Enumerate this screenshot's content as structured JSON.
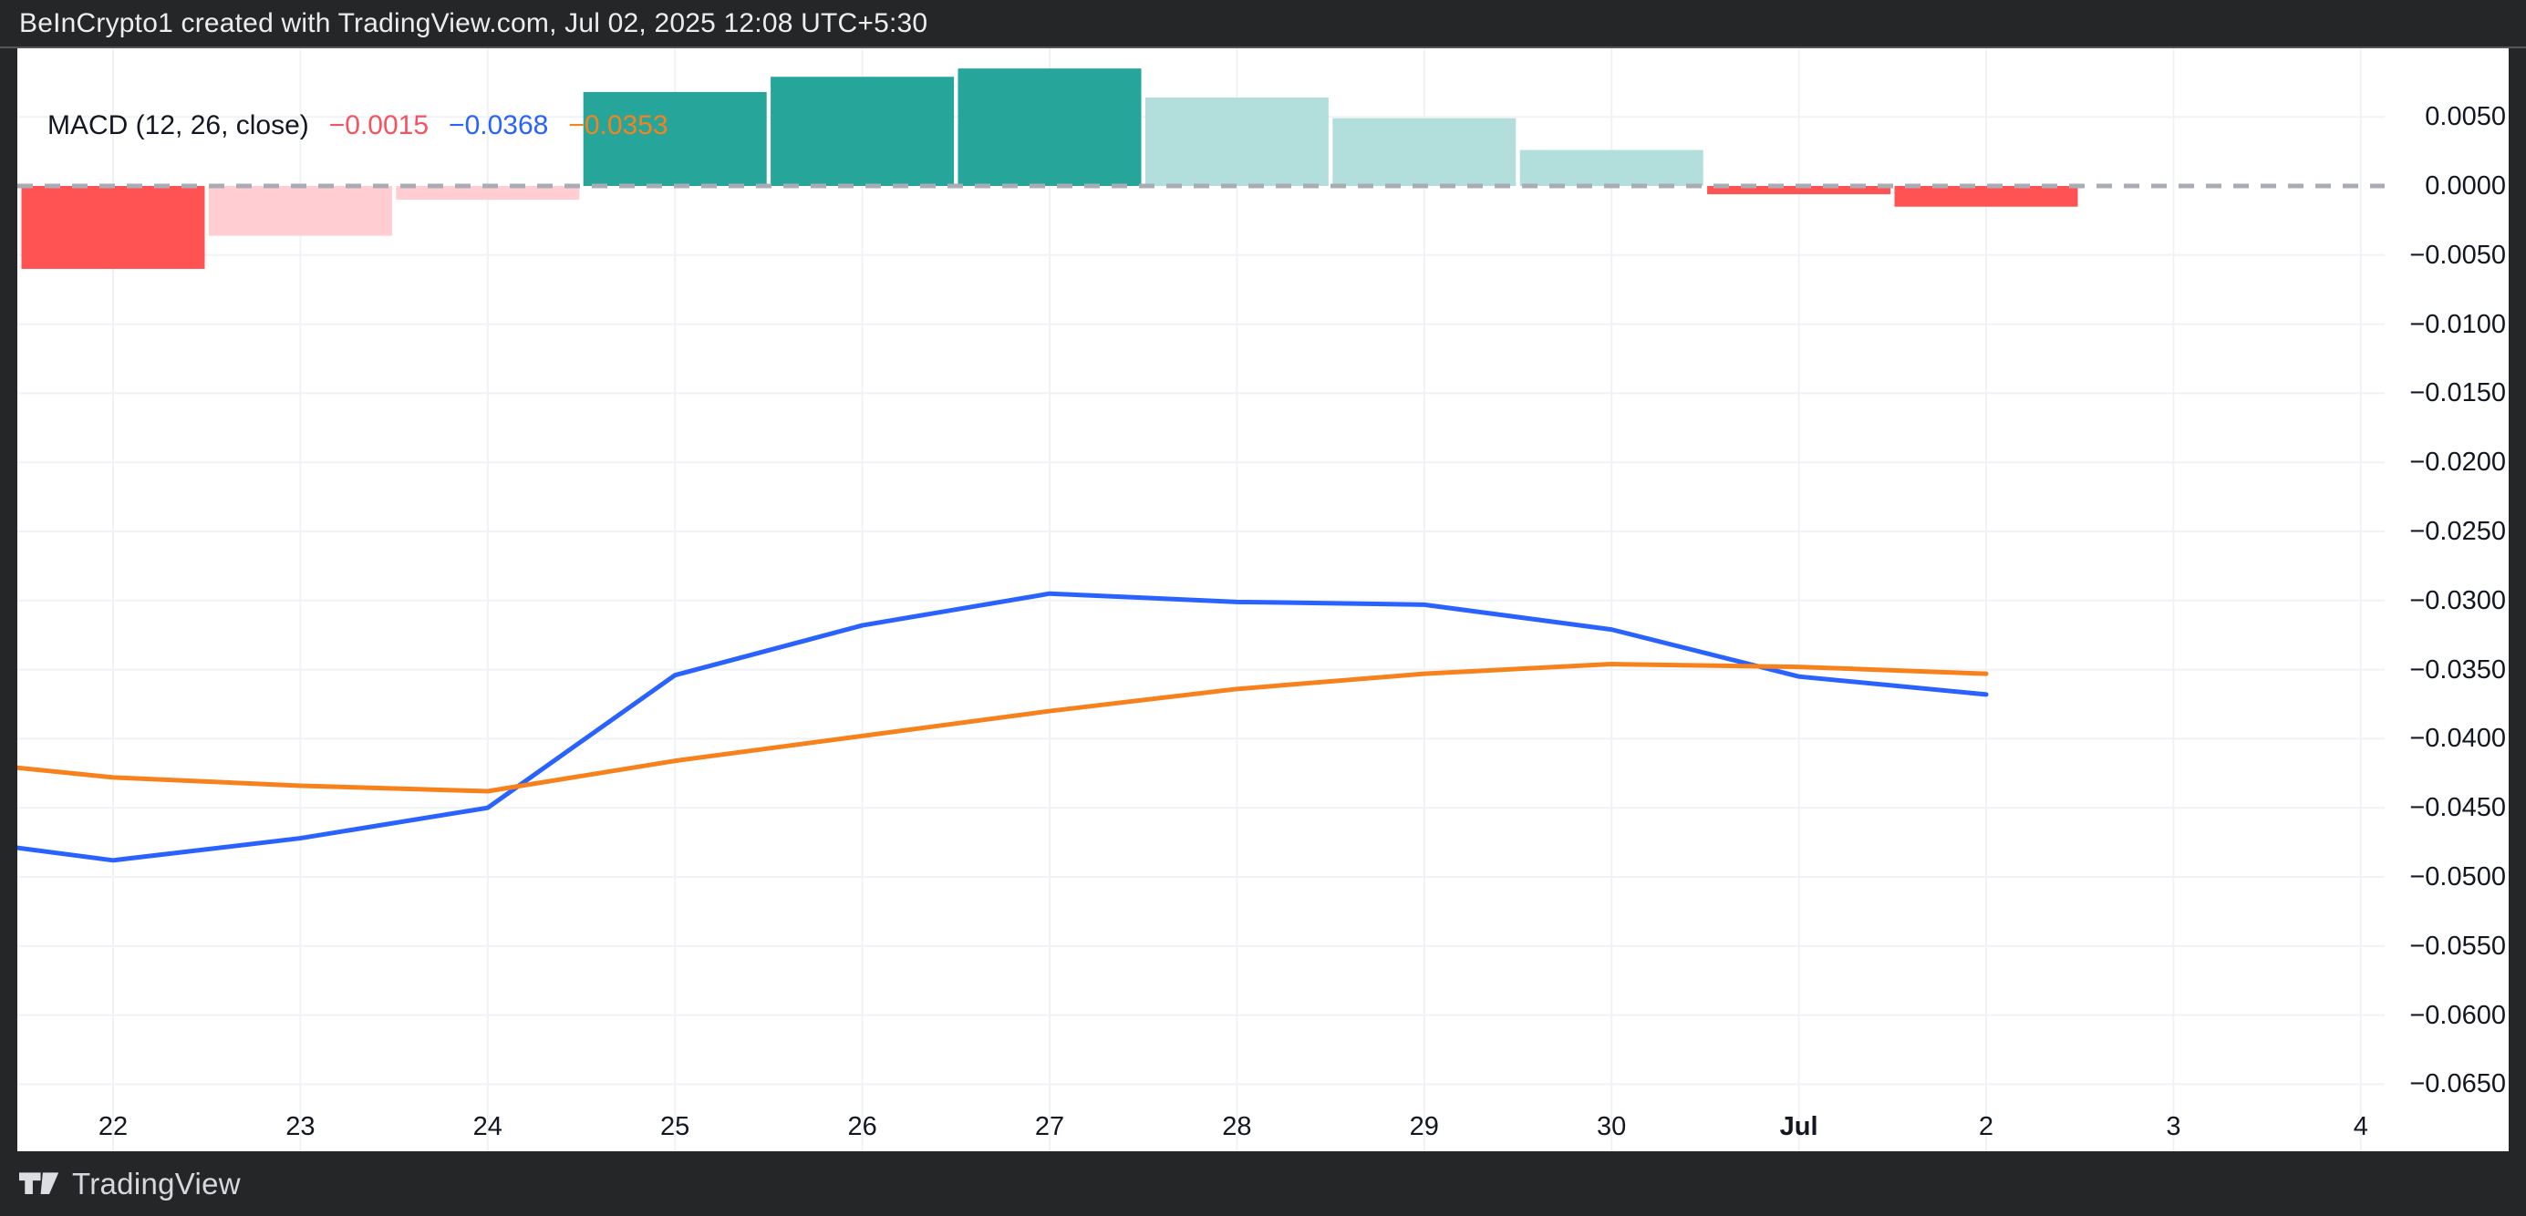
{
  "header": {
    "title": "BeInCrypto1 created with TradingView.com, Jul 02, 2025 12:08 UTC+5:30"
  },
  "footer": {
    "logo_icon": "tradingview-logo",
    "brand": "TradingView"
  },
  "legend": {
    "indicator_label": "MACD (12, 26, close)",
    "histogram_value": "−0.0015",
    "macd_value": "−0.0368",
    "signal_value": "−0.0353"
  },
  "colors": {
    "chrome_bg": "#242628",
    "plot_bg": "#ffffff",
    "grid": "#f0f2f6",
    "zero_dash": "#a9acb5",
    "axis_text": "#131722",
    "hist_up_strong": "#26a69a",
    "hist_up_weak": "#b2dfdb",
    "hist_down_strong": "#ff5252",
    "hist_down_weak": "#ffcdd2",
    "macd_line": "#2962ff",
    "signal_line": "#f7821c",
    "legend_hist_value": "#f7525f",
    "legend_macd_value": "#2962ff",
    "legend_signal_value": "#f7821c"
  },
  "chart_data": {
    "type": "bar+line (MACD indicator panel)",
    "title": "MACD (12, 26, close)",
    "x_categories": [
      {
        "label": "22"
      },
      {
        "label": "23"
      },
      {
        "label": "24"
      },
      {
        "label": "25"
      },
      {
        "label": "26"
      },
      {
        "label": "27"
      },
      {
        "label": "28"
      },
      {
        "label": "29"
      },
      {
        "label": "30"
      },
      {
        "label": "Jul",
        "bold": true
      },
      {
        "label": "2"
      },
      {
        "label": "3"
      },
      {
        "label": "4"
      }
    ],
    "histogram": {
      "name": "MACD Histogram",
      "values": [
        -0.006,
        -0.0036,
        -0.001,
        0.0068,
        0.0079,
        0.0085,
        0.0064,
        0.0049,
        0.0026,
        -0.0006,
        -0.0015,
        null,
        null
      ],
      "bar_colors": [
        "#ff5252",
        "#ffcdd2",
        "#ffcdd2",
        "#26a69a",
        "#26a69a",
        "#26a69a",
        "#b2dfdb",
        "#b2dfdb",
        "#b2dfdb",
        "#ff5252",
        "#ff5252",
        null,
        null
      ]
    },
    "series": [
      {
        "name": "MACD",
        "color": "#2962ff",
        "edge_value": -0.0479,
        "values": [
          -0.0488,
          -0.0472,
          -0.045,
          -0.0354,
          -0.0318,
          -0.0295,
          -0.0301,
          -0.0303,
          -0.0321,
          -0.0355,
          -0.0368,
          null,
          null
        ]
      },
      {
        "name": "Signal",
        "color": "#f7821c",
        "edge_value": -0.0421,
        "values": [
          -0.0428,
          -0.0434,
          -0.0438,
          -0.0416,
          -0.0398,
          -0.038,
          -0.0364,
          -0.0353,
          -0.0346,
          -0.0348,
          -0.0353,
          null,
          null
        ]
      }
    ],
    "y_ticks": [
      {
        "value": 0.005,
        "label": "0.0050"
      },
      {
        "value": 0.0,
        "label": "0.0000"
      },
      {
        "value": -0.005,
        "label": "−0.0050"
      },
      {
        "value": -0.01,
        "label": "−0.0100"
      },
      {
        "value": -0.015,
        "label": "−0.0150"
      },
      {
        "value": -0.02,
        "label": "−0.0200"
      },
      {
        "value": -0.025,
        "label": "−0.0250"
      },
      {
        "value": -0.03,
        "label": "−0.0300"
      },
      {
        "value": -0.035,
        "label": "−0.0350"
      },
      {
        "value": -0.04,
        "label": "−0.0400"
      },
      {
        "value": -0.045,
        "label": "−0.0450"
      },
      {
        "value": -0.05,
        "label": "−0.0500"
      },
      {
        "value": -0.055,
        "label": "−0.0550"
      },
      {
        "value": -0.06,
        "label": "−0.0600"
      },
      {
        "value": -0.065,
        "label": "−0.0650"
      }
    ],
    "ylim": [
      -0.0683,
      0.0067
    ],
    "zero_line": {
      "style": "dashed",
      "value": 0
    },
    "grid": true,
    "legend_position": "top-left"
  }
}
